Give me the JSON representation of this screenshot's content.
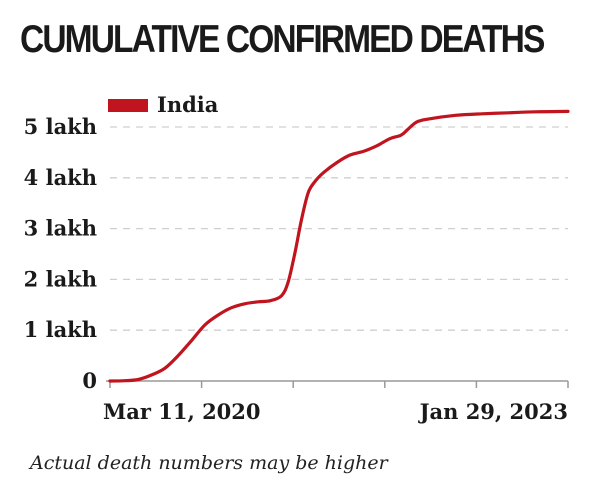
{
  "title": "CUMULATIVE CONFIRMED DEATHS",
  "footnote": "Actual death numbers may be higher",
  "colors": {
    "series": "#c0141f",
    "grid": "#cfcfcf",
    "axis": "#999999",
    "text": "#1a1a1a"
  },
  "chart_data": {
    "type": "line",
    "title": "CUMULATIVE CONFIRMED DEATHS",
    "xlabel": "",
    "ylabel": "",
    "x_tick_labels": [
      "Mar 11, 2020",
      "Jan 29, 2023"
    ],
    "xlim": [
      "2020-03-11",
      "2023-01-29"
    ],
    "y_ticks": [
      {
        "value": 0,
        "label": "0"
      },
      {
        "value": 100000,
        "label": "1 lakh"
      },
      {
        "value": 200000,
        "label": "2 lakh"
      },
      {
        "value": 300000,
        "label": "3 lakh"
      },
      {
        "value": 400000,
        "label": "4 lakh"
      },
      {
        "value": 500000,
        "label": "5 lakh"
      }
    ],
    "ylim": [
      0,
      500000
    ],
    "grid": true,
    "legend_position": "top-left",
    "series": [
      {
        "name": "India",
        "color": "#c0141f",
        "points": [
          {
            "x": "2020-03-11",
            "y": 0
          },
          {
            "x": "2020-04-15",
            "y": 500
          },
          {
            "x": "2020-05-15",
            "y": 3000
          },
          {
            "x": "2020-06-15",
            "y": 12000
          },
          {
            "x": "2020-07-15",
            "y": 25000
          },
          {
            "x": "2020-08-15",
            "y": 50000
          },
          {
            "x": "2020-09-15",
            "y": 80000
          },
          {
            "x": "2020-10-15",
            "y": 110000
          },
          {
            "x": "2020-11-15",
            "y": 130000
          },
          {
            "x": "2020-12-15",
            "y": 144000
          },
          {
            "x": "2021-01-15",
            "y": 152000
          },
          {
            "x": "2021-02-15",
            "y": 156000
          },
          {
            "x": "2021-03-15",
            "y": 158000
          },
          {
            "x": "2021-04-10",
            "y": 168000
          },
          {
            "x": "2021-04-25",
            "y": 195000
          },
          {
            "x": "2021-05-10",
            "y": 250000
          },
          {
            "x": "2021-05-25",
            "y": 315000
          },
          {
            "x": "2021-06-10",
            "y": 370000
          },
          {
            "x": "2021-06-25",
            "y": 392000
          },
          {
            "x": "2021-07-15",
            "y": 410000
          },
          {
            "x": "2021-08-15",
            "y": 430000
          },
          {
            "x": "2021-09-15",
            "y": 445000
          },
          {
            "x": "2021-10-15",
            "y": 452000
          },
          {
            "x": "2021-11-15",
            "y": 463000
          },
          {
            "x": "2021-12-15",
            "y": 477000
          },
          {
            "x": "2022-01-10",
            "y": 484000
          },
          {
            "x": "2022-01-25",
            "y": 495000
          },
          {
            "x": "2022-02-15",
            "y": 510000
          },
          {
            "x": "2022-03-15",
            "y": 516000
          },
          {
            "x": "2022-05-15",
            "y": 523000
          },
          {
            "x": "2022-07-15",
            "y": 526000
          },
          {
            "x": "2022-09-15",
            "y": 528000
          },
          {
            "x": "2022-11-15",
            "y": 530000
          },
          {
            "x": "2023-01-29",
            "y": 530700
          }
        ]
      }
    ]
  }
}
